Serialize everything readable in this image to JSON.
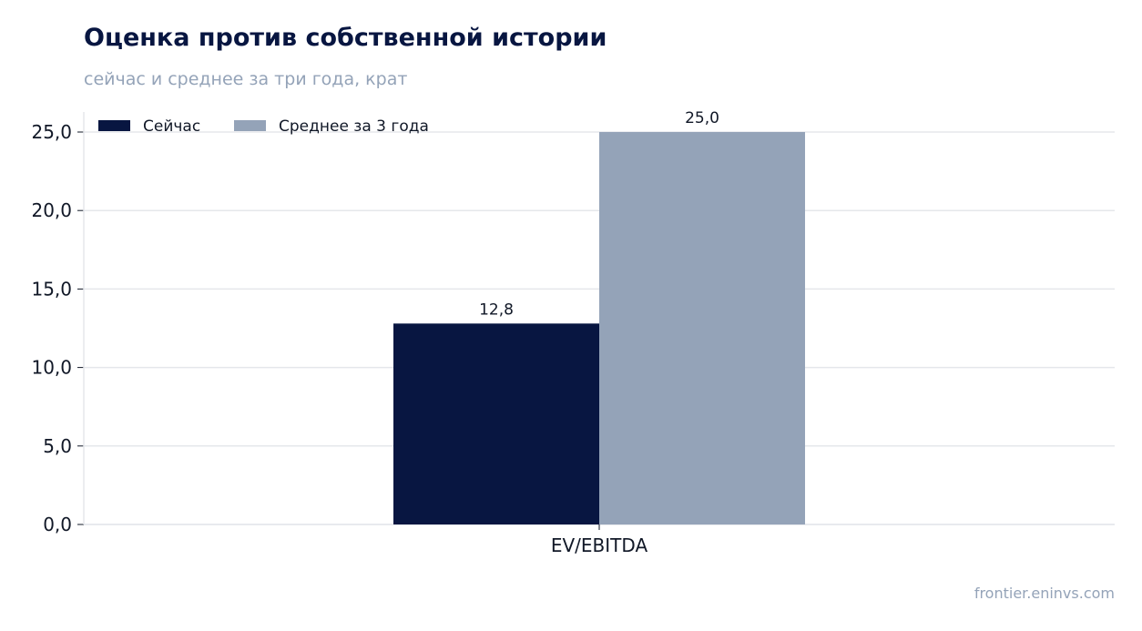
{
  "title": "Оценка против собственной истории",
  "subtitle": "сейчас и среднее за три года, крат",
  "source": "frontier.eninvs.com",
  "chart_data": {
    "type": "bar",
    "title": "Оценка против собственной истории",
    "subtitle": "сейчас и среднее за три года, крат",
    "categories": [
      "EV/EBITDA"
    ],
    "series": [
      {
        "name": "Сейчас",
        "values": [
          12.8
        ],
        "labels": [
          "12,8"
        ],
        "color": "#081641"
      },
      {
        "name": "Среднее за 3 года",
        "values": [
          25.0
        ],
        "labels": [
          "25,0"
        ],
        "color": "#94a3b8"
      }
    ],
    "xlabel": "",
    "ylabel": "",
    "ylim": [
      0,
      25
    ],
    "yticks": [
      "0,0",
      "5,0",
      "10,0",
      "15,0",
      "20,0",
      "25,0"
    ],
    "grid": "horizontal",
    "legend": "top-left"
  }
}
